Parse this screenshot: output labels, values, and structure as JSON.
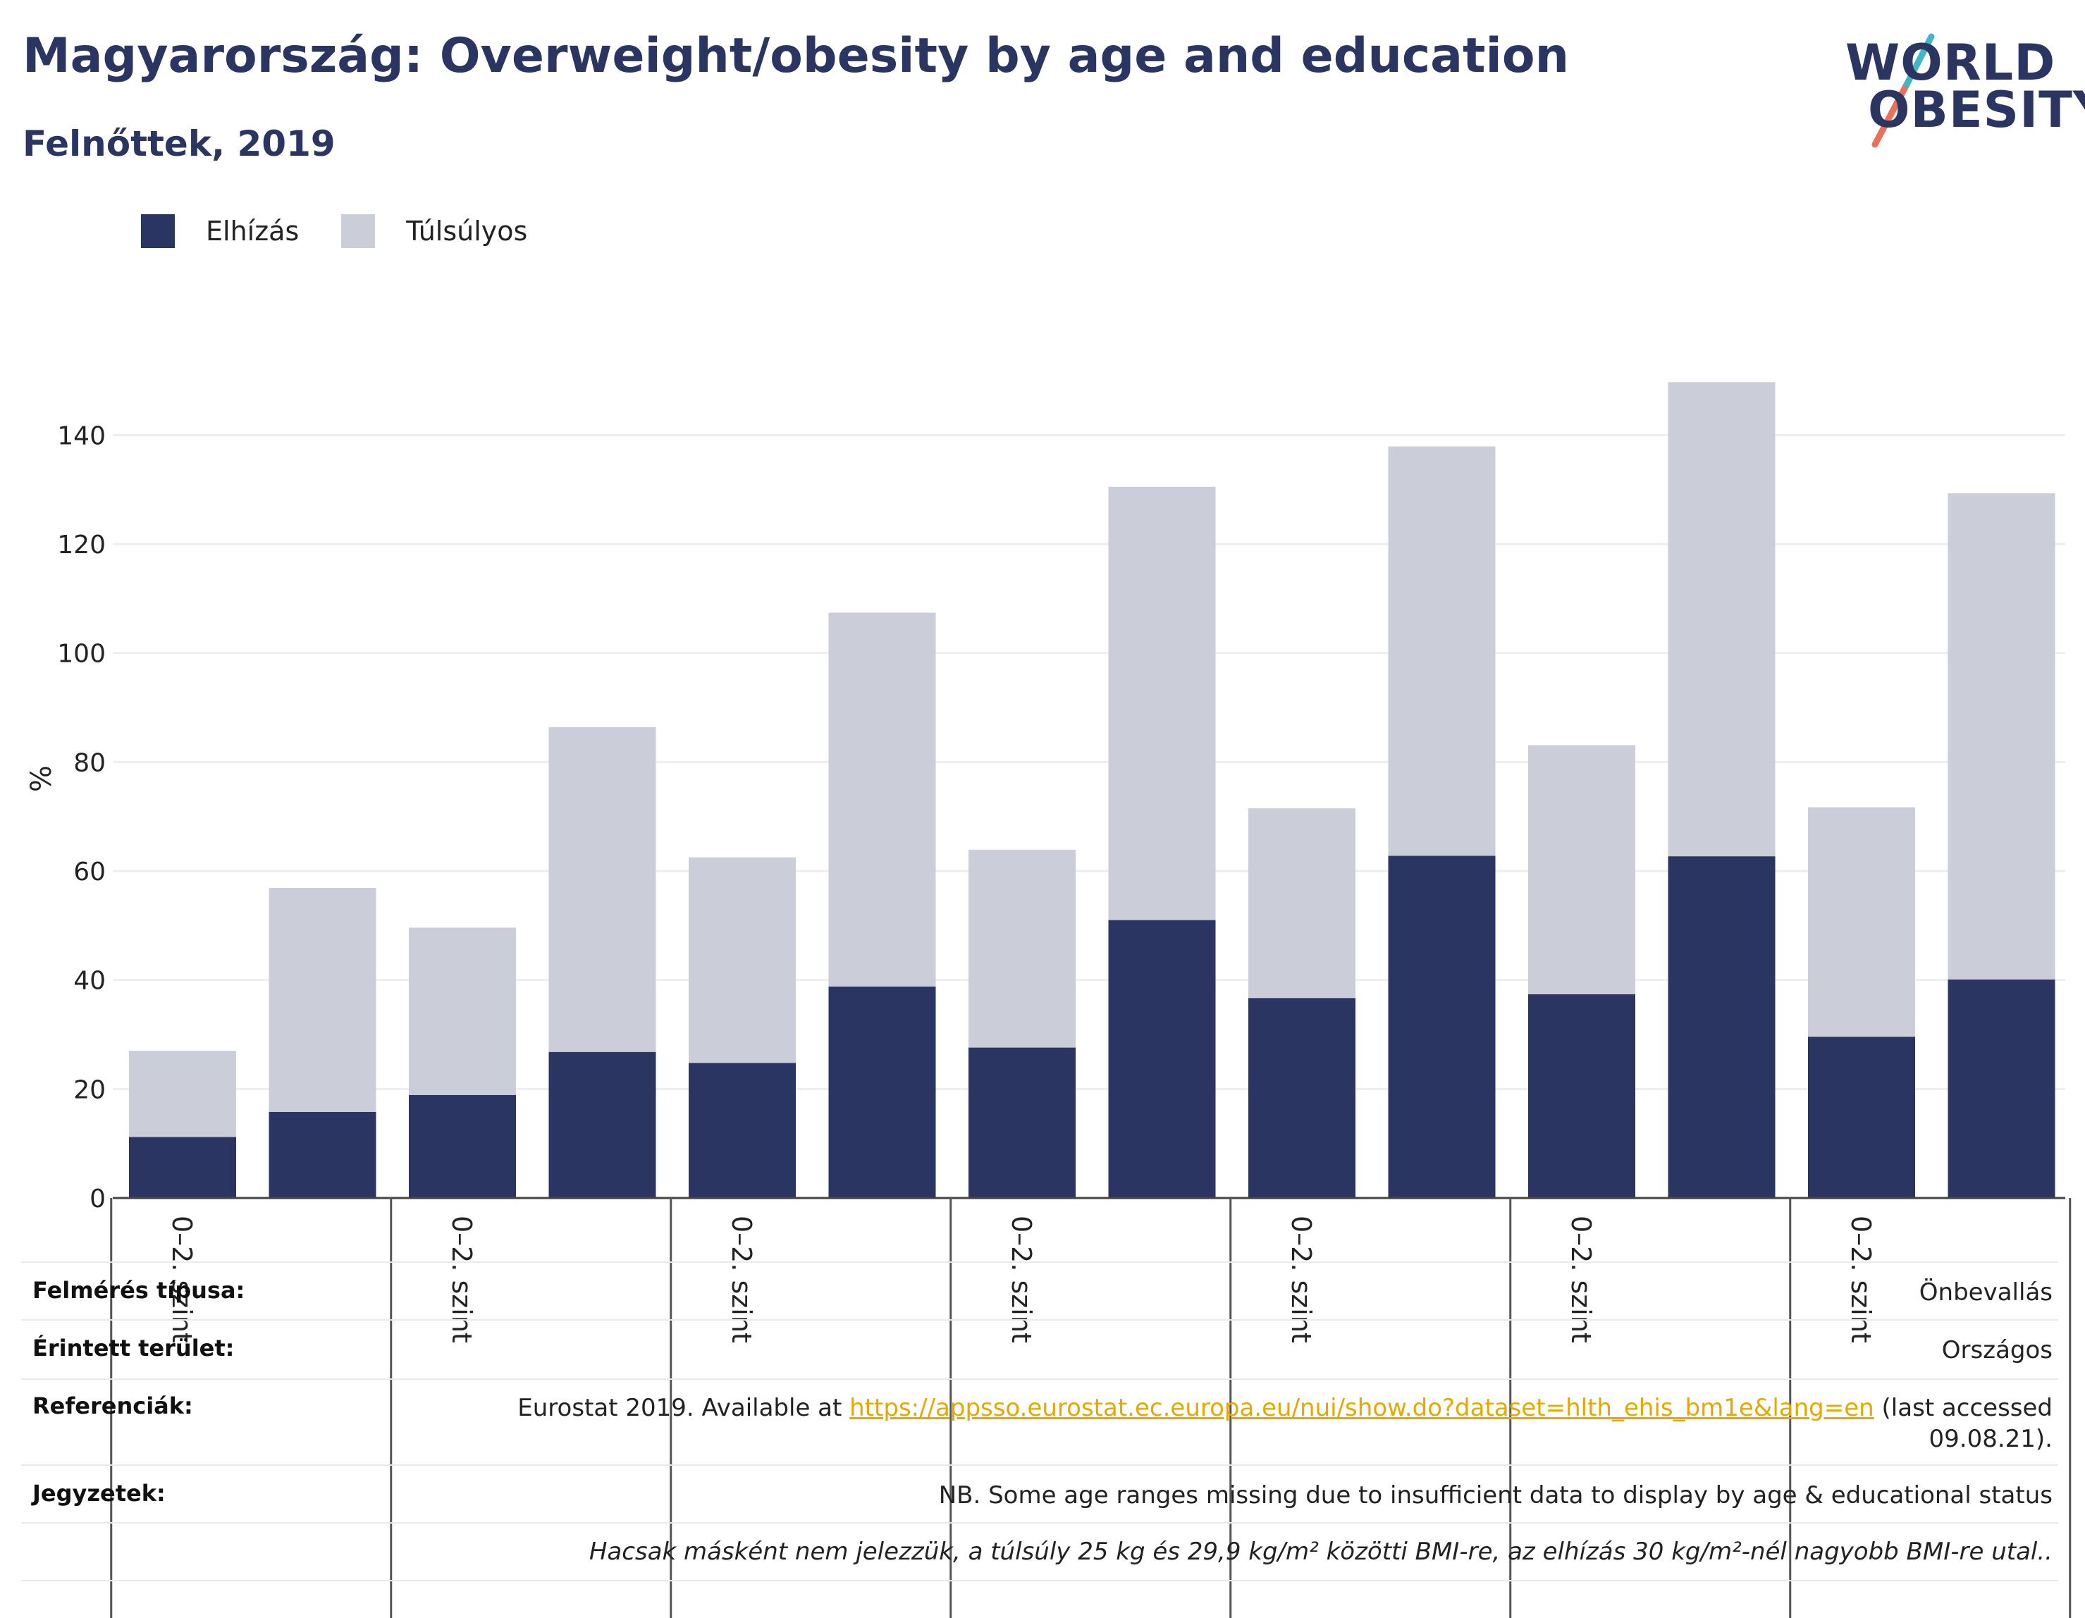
{
  "header": {
    "title": "Magyarország: Overweight/obesity by age and education",
    "subtitle": "Felnőttek, 2019"
  },
  "logo": {
    "line1": "WORLD",
    "line2": "OBESITY",
    "accent_colors": [
      "#3fb7c4",
      "#e8705c"
    ]
  },
  "legend": [
    {
      "label": "Elhízás",
      "color": "#2a3561"
    },
    {
      "label": "Túlsúlyos",
      "color": "#cbcdd8"
    }
  ],
  "chart_data": {
    "type": "bar",
    "stacked": true,
    "ylabel": "%",
    "ylim": [
      0,
      150
    ],
    "yticks": [
      0,
      20,
      40,
      60,
      80,
      100,
      120,
      140
    ],
    "grid": true,
    "legend_position": "top-left",
    "categories": [
      "0–2. szint",
      "",
      "0–2. szint",
      "",
      "0–2. szint",
      "",
      "0–2. szint",
      "",
      "0–2. szint",
      "",
      "0–2. szint",
      "",
      "0–2. szint",
      ""
    ],
    "series": [
      {
        "name": "Elhízás",
        "color": "#2a3561",
        "values": [
          11.2,
          15.8,
          18.9,
          26.8,
          24.8,
          38.8,
          27.6,
          51.0,
          36.7,
          62.8,
          37.4,
          62.7,
          29.6,
          40.1
        ]
      },
      {
        "name": "Túlsúlyos",
        "color": "#cbcdd8",
        "values": [
          15.8,
          41.1,
          30.7,
          59.6,
          37.7,
          68.6,
          36.3,
          79.5,
          34.8,
          75.1,
          45.7,
          87.0,
          42.1,
          89.2
        ]
      }
    ]
  },
  "footer": {
    "survey_type": {
      "key": "Felmérés típusa:",
      "value": "Önbevallás"
    },
    "area": {
      "key": "Érintett terület:",
      "value": "Országos"
    },
    "references": {
      "key": "Referenciák:",
      "prefix": "Eurostat 2019. Available at ",
      "link": "https://appsso.eurostat.ec.europa.eu/nui/show.do?dataset=hlth_ehis_bm1e&lang=en",
      "suffix": " (last accessed",
      "line2": "09.08.21)."
    },
    "notes": {
      "key": "Jegyzetek:",
      "value": "NB. Some age ranges missing due to insufficient data to display by age & educational status"
    },
    "definition": "Hacsak másként nem jelezzük, a túlsúly 25 kg és 29,9 kg/m² közötti BMI-re, az elhízás 30 kg/m²-nél nagyobb BMI-re utal.."
  }
}
